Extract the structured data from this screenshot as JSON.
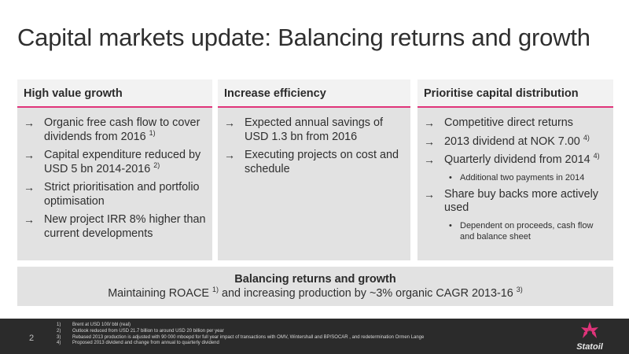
{
  "slide": {
    "title": "Capital markets update: Balancing returns and growth",
    "page_number": "2"
  },
  "panels": [
    {
      "header": "High value growth",
      "items": [
        {
          "text": "Organic free cash flow to cover dividends from 2016",
          "sup": "1)"
        },
        {
          "text": "Capital expenditure reduced by USD 5 bn 2014-2016",
          "sup": "2)"
        },
        {
          "text": "Strict prioritisation and portfolio optimisation",
          "sup": ""
        },
        {
          "text": "New project IRR 8% higher than current developments",
          "sup": ""
        }
      ]
    },
    {
      "header": "Increase efficiency",
      "items": [
        {
          "text": "Expected annual savings of USD 1.3 bn from 2016",
          "sup": ""
        },
        {
          "text": "Executing projects on cost and schedule",
          "sup": ""
        }
      ]
    },
    {
      "header": "Prioritise capital distribution",
      "items": [
        {
          "text": "Competitive direct returns",
          "sup": ""
        },
        {
          "text": "2013 dividend at NOK 7.00",
          "sup": "4)"
        },
        {
          "text": "Quarterly dividend from 2014",
          "sup": "4)"
        },
        {
          "text": "Additional two payments in 2014",
          "sup": ""
        },
        {
          "text": "Share buy backs more actively used",
          "sup": ""
        },
        {
          "text": "Dependent on proceeds, cash flow and balance sheet",
          "sup": ""
        }
      ]
    }
  ],
  "summary": {
    "title": "Balancing returns and growth",
    "text_a": "Maintaining ROACE",
    "sup_a": "1)",
    "text_b": "and increasing production by ~3% organic CAGR 2013-16",
    "sup_b": "3)"
  },
  "footnotes": [
    {
      "num": "1)",
      "text": "Brent at USD 100/ bbl (real)"
    },
    {
      "num": "2)",
      "text": "Outlook reduced from USD 21.7 billion to around USD 20 billion per year"
    },
    {
      "num": "3)",
      "text": "Rebased 2013 production  is adjusted with 90 000 mboepd  for full year impact of transactions with OMV, Wintershall and BP/SOCAR , and redetermination Ormen Lange"
    },
    {
      "num": "4)",
      "text": "Proposed 2013 dividend  and change  from annual to quarterly dividend"
    }
  ],
  "logo": {
    "text": "Statoil",
    "color": "#e0347a"
  },
  "colors": {
    "accent": "#e0347a",
    "panel": "#e2e2e2",
    "footer": "#2b2b2b"
  },
  "icons": {
    "bullet": "arrow-right-icon",
    "sub_bullet": "dot-icon"
  }
}
